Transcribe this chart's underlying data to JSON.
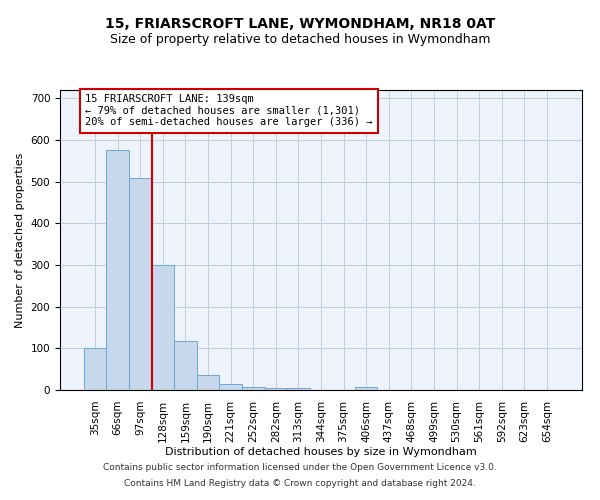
{
  "title": "15, FRIARSCROFT LANE, WYMONDHAM, NR18 0AT",
  "subtitle": "Size of property relative to detached houses in Wymondham",
  "xlabel": "Distribution of detached houses by size in Wymondham",
  "ylabel": "Number of detached properties",
  "bar_labels": [
    "35sqm",
    "66sqm",
    "97sqm",
    "128sqm",
    "159sqm",
    "190sqm",
    "221sqm",
    "252sqm",
    "282sqm",
    "313sqm",
    "344sqm",
    "375sqm",
    "406sqm",
    "437sqm",
    "468sqm",
    "499sqm",
    "530sqm",
    "561sqm",
    "592sqm",
    "623sqm",
    "654sqm"
  ],
  "bar_values": [
    100,
    575,
    510,
    300,
    118,
    35,
    15,
    8,
    5,
    5,
    0,
    0,
    7,
    0,
    0,
    0,
    0,
    0,
    0,
    0,
    0
  ],
  "bar_color": "#c8d8ec",
  "bar_edgecolor": "#6aaad4",
  "vline_x": 2.5,
  "vline_color": "#cc0000",
  "annotation_text": "15 FRIARSCROFT LANE: 139sqm\n← 79% of detached houses are smaller (1,301)\n20% of semi-detached houses are larger (336) →",
  "annotation_box_color": "#ffffff",
  "annotation_box_edgecolor": "#cc0000",
  "ylim": [
    0,
    720
  ],
  "yticks": [
    0,
    100,
    200,
    300,
    400,
    500,
    600,
    700
  ],
  "background_color": "#eef2fa",
  "grid_color": "#c0cce0",
  "footer1": "Contains HM Land Registry data © Crown copyright and database right 2024.",
  "footer2": "Contains public sector information licensed under the Open Government Licence v3.0.",
  "title_fontsize": 10,
  "subtitle_fontsize": 9,
  "axis_label_fontsize": 8,
  "tick_fontsize": 7.5,
  "annotation_fontsize": 7.5
}
